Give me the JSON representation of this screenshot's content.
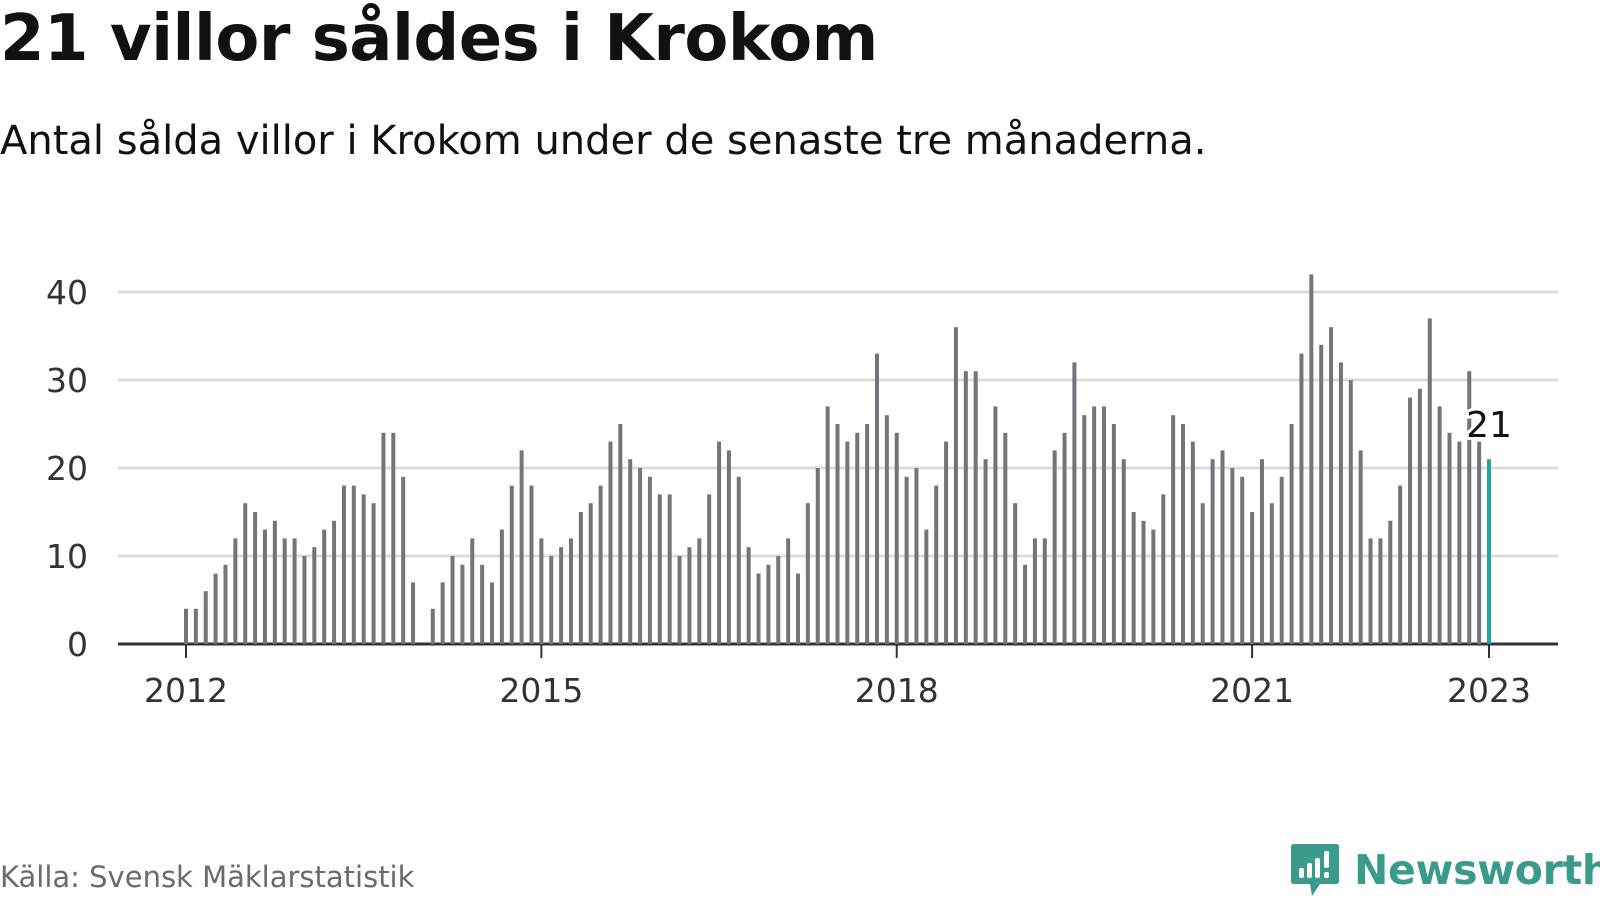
{
  "title": "21 villor såldes i Krokom",
  "subtitle": "Antal sålda villor i Krokom under de senaste tre månaderna.",
  "source": "Källa: Svensk Mäklarstatistik",
  "brand": {
    "name": "Newsworthy",
    "icon": "newsworthy-logo-icon",
    "color": "#3a9b8c"
  },
  "colors": {
    "bar": "#75747a",
    "highlight": "#20a69c",
    "grid": "#dcdcdc",
    "axis": "#333333",
    "text": "#333333"
  },
  "chart_data": {
    "type": "bar",
    "x_start": "2012-01",
    "frequency": "monthly",
    "values": [
      4,
      4,
      6,
      8,
      9,
      12,
      16,
      15,
      13,
      14,
      12,
      12,
      10,
      11,
      13,
      14,
      18,
      18,
      17,
      16,
      24,
      24,
      19,
      7,
      null,
      4,
      7,
      10,
      9,
      12,
      9,
      7,
      13,
      18,
      22,
      18,
      12,
      10,
      11,
      12,
      15,
      16,
      18,
      23,
      25,
      21,
      20,
      19,
      17,
      17,
      10,
      11,
      12,
      17,
      23,
      22,
      19,
      11,
      8,
      9,
      10,
      12,
      8,
      16,
      20,
      27,
      25,
      23,
      24,
      25,
      33,
      26,
      24,
      19,
      20,
      13,
      18,
      23,
      36,
      31,
      31,
      21,
      27,
      24,
      16,
      9,
      12,
      12,
      22,
      24,
      32,
      26,
      27,
      27,
      25,
      21,
      15,
      14,
      13,
      17,
      26,
      25,
      23,
      16,
      21,
      22,
      20,
      19,
      15,
      21,
      16,
      19,
      25,
      33,
      42,
      34,
      36,
      32,
      30,
      22,
      12,
      12,
      14,
      18,
      28,
      29,
      37,
      27,
      24,
      23,
      31,
      23,
      21
    ],
    "highlight": {
      "label": "21",
      "value": 21
    },
    "x_ticks": [
      "2012",
      "2015",
      "2018",
      "2021",
      "2023"
    ],
    "y_ticks": [
      0,
      10,
      20,
      30,
      40
    ],
    "ylim": [
      0,
      42
    ],
    "grid": true
  }
}
